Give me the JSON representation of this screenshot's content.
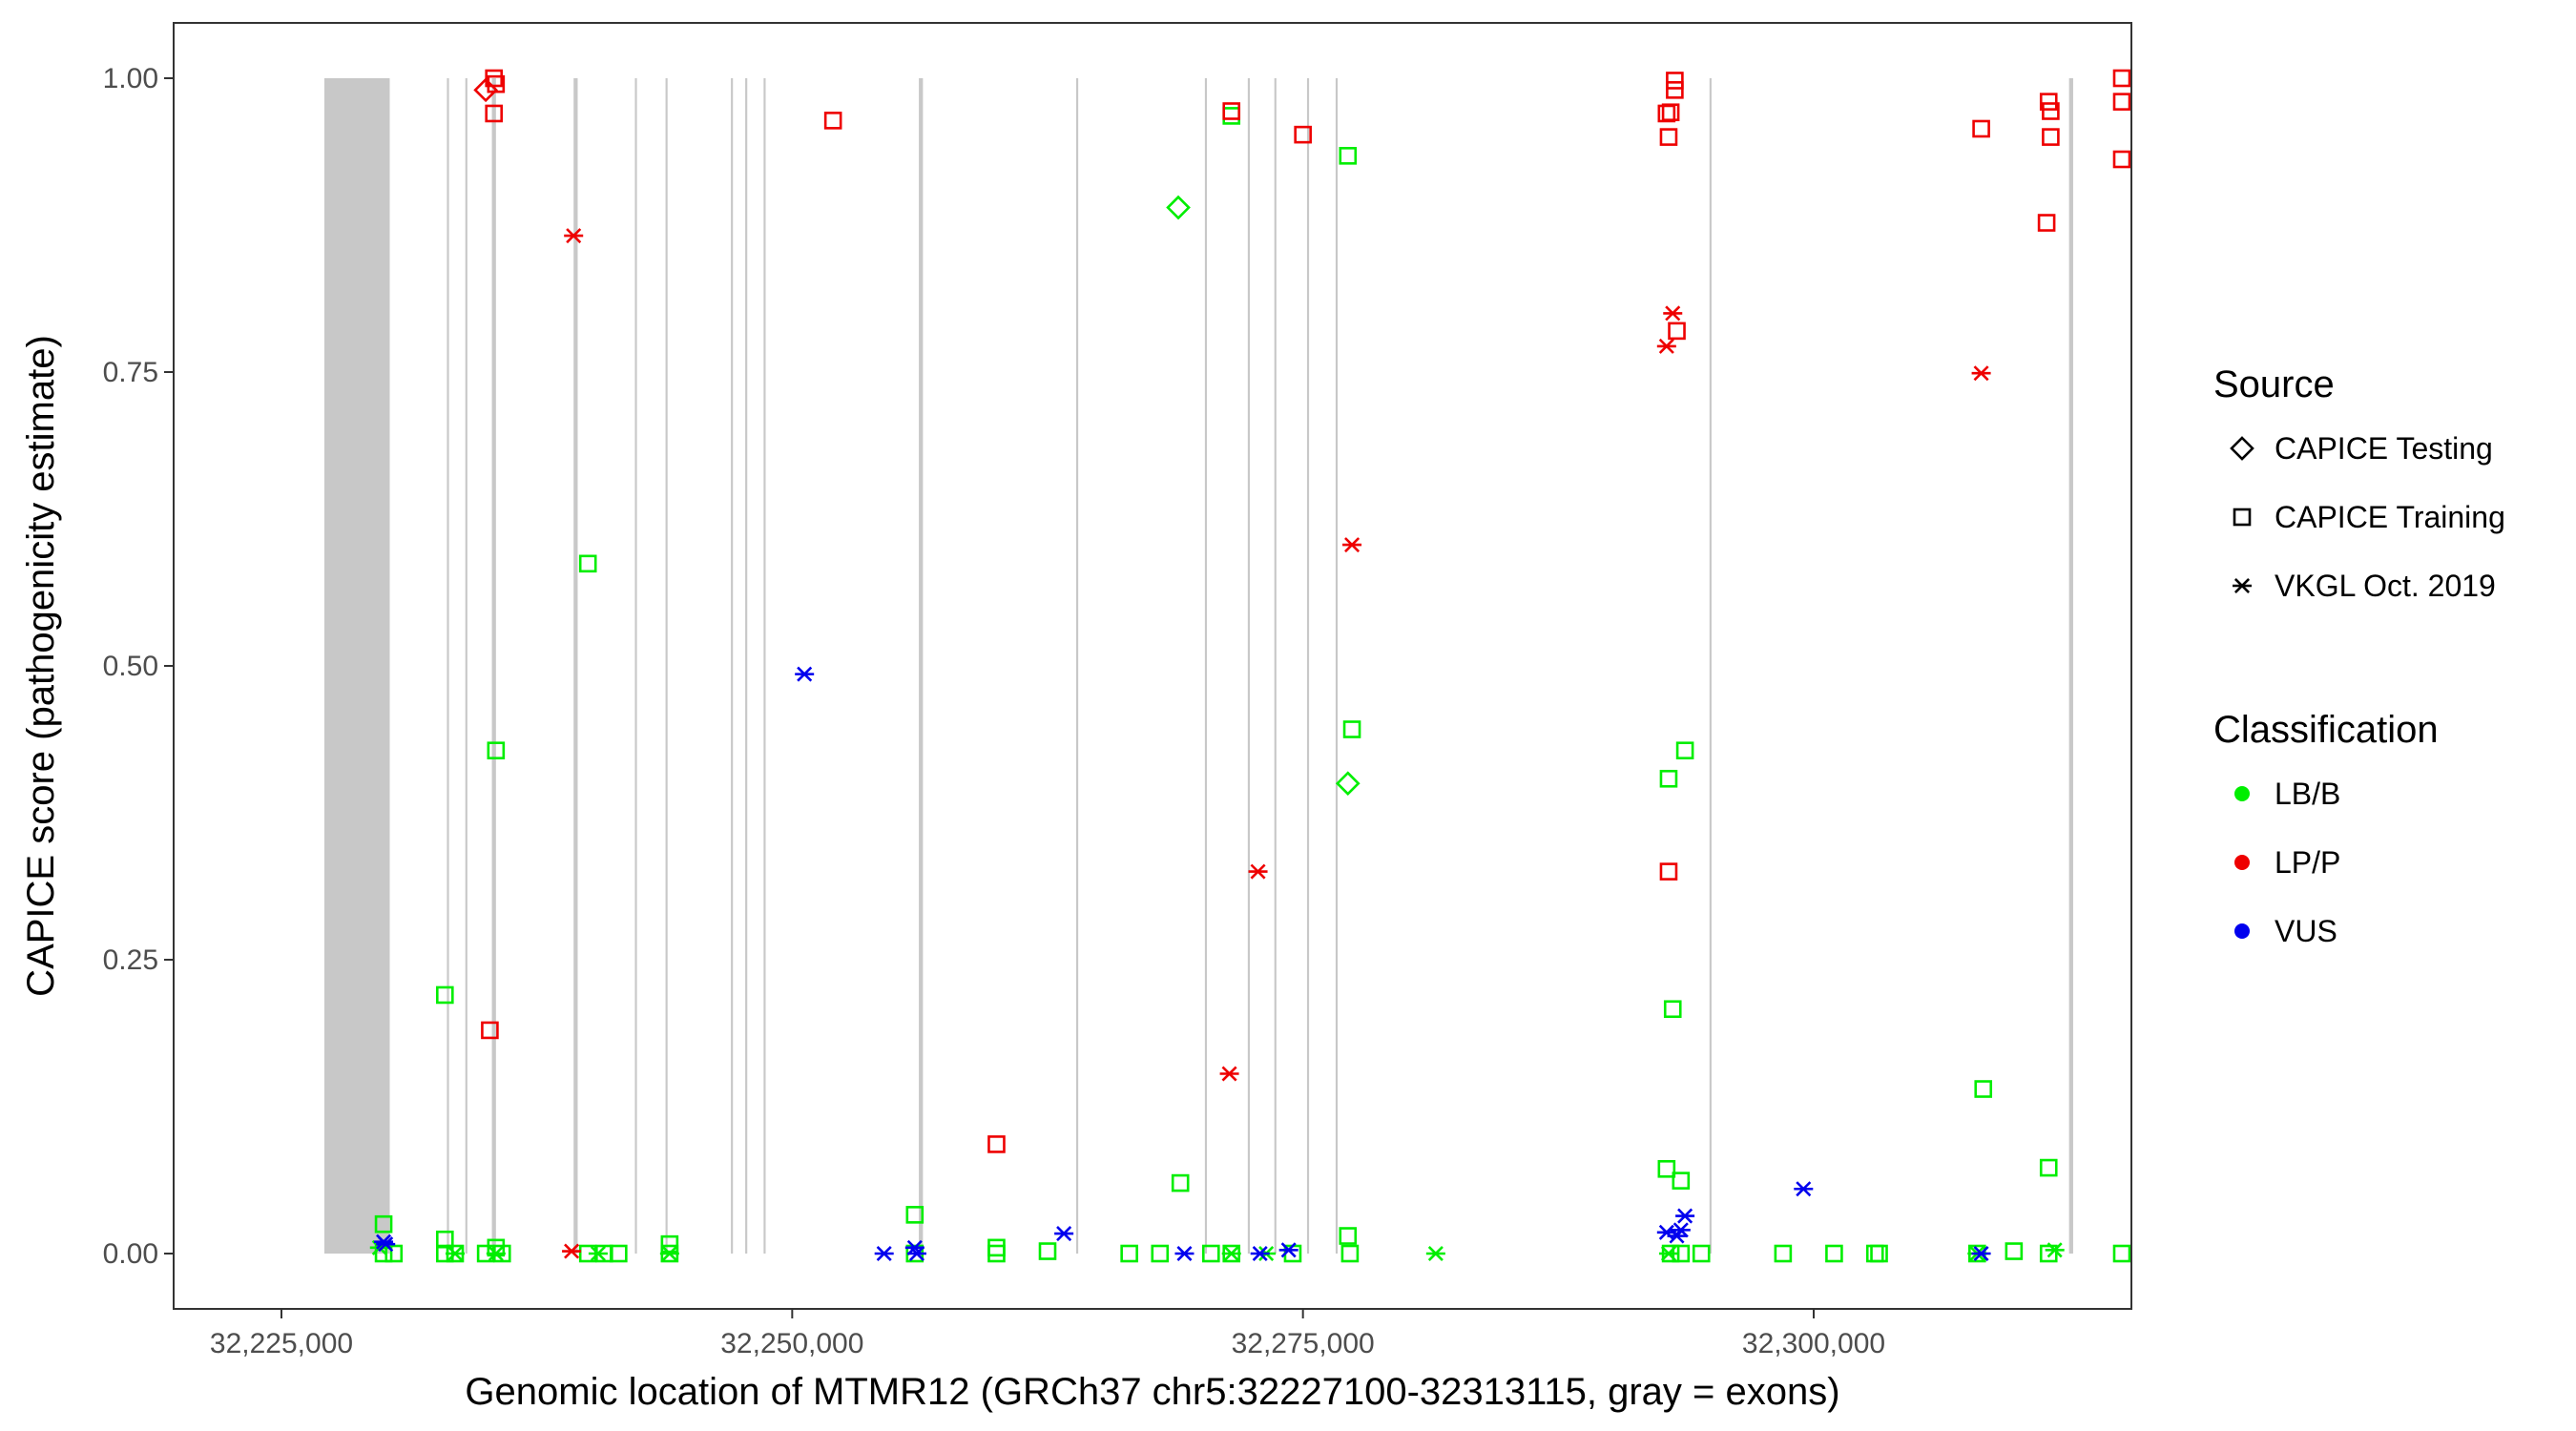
{
  "chart_data": {
    "type": "scatter",
    "title": "",
    "xlabel": "Genomic location of MTMR12 (GRCh37 chr5:32227100-32313115, gray = exons)",
    "ylabel": "CAPICE score (pathogenicity estimate)",
    "xlim": [
      32222000,
      32319500
    ],
    "ylim": [
      -0.05,
      1.05
    ],
    "x_ticks": [
      32225000,
      32250000,
      32275000,
      32300000
    ],
    "x_tick_labels": [
      "32,225,000",
      "32,250,000",
      "32,275,000",
      "32,300,000"
    ],
    "y_ticks": [
      0,
      0.25,
      0.5,
      0.75,
      1
    ],
    "y_tick_labels": [
      "0.00",
      "0.25",
      "0.50",
      "0.75",
      "1.00"
    ],
    "grid": false,
    "legend_position": "right",
    "exons": [
      [
        32227100,
        32230300
      ],
      [
        32233100,
        32233200
      ],
      [
        32234000,
        32234100
      ],
      [
        32235300,
        32235500
      ],
      [
        32239300,
        32239500
      ],
      [
        32242300,
        32242400
      ],
      [
        32243800,
        32243900
      ],
      [
        32247000,
        32247100
      ],
      [
        32247700,
        32247800
      ],
      [
        32248600,
        32248700
      ],
      [
        32256200,
        32256400
      ],
      [
        32263900,
        32264000
      ],
      [
        32270200,
        32270300
      ],
      [
        32272300,
        32272400
      ],
      [
        32273600,
        32273700
      ],
      [
        32275200,
        32275300
      ],
      [
        32276600,
        32276700
      ],
      [
        32294900,
        32295000
      ],
      [
        32312500,
        32312700
      ]
    ],
    "legend_source": {
      "title": "Source",
      "items": [
        {
          "key": "testing",
          "label": "CAPICE Testing",
          "shape": "diamond"
        },
        {
          "key": "training",
          "label": "CAPICE Training",
          "shape": "square"
        },
        {
          "key": "vkgl",
          "label": "VKGL Oct. 2019",
          "shape": "asterisk"
        }
      ]
    },
    "legend_classification": {
      "title": "Classification",
      "items": [
        {
          "key": "lbb",
          "label": "LB/B",
          "color": "#00ee00"
        },
        {
          "key": "lpp",
          "label": "LP/P",
          "color": "#ee0000"
        },
        {
          "key": "vus",
          "label": "VUS",
          "color": "#0000ee"
        }
      ]
    },
    "series": [
      {
        "source": "training",
        "classification": "lbb",
        "points": [
          [
            32230000,
            0.025
          ],
          [
            32230000,
            0.0
          ],
          [
            32230500,
            0.0
          ],
          [
            32233000,
            0.22
          ],
          [
            32233000,
            0.012
          ],
          [
            32233000,
            0.0
          ],
          [
            32233500,
            0.0
          ],
          [
            32235500,
            0.428
          ],
          [
            32235500,
            0.005
          ],
          [
            32235000,
            0.0
          ],
          [
            32235800,
            0.0
          ],
          [
            32240000,
            0.587
          ],
          [
            32240000,
            0.0
          ],
          [
            32240800,
            0.0
          ],
          [
            32241500,
            0.0
          ],
          [
            32244000,
            0.008
          ],
          [
            32244000,
            0.0
          ],
          [
            32256000,
            0.033
          ],
          [
            32256000,
            0.0
          ],
          [
            32260000,
            0.005
          ],
          [
            32260000,
            0.0
          ],
          [
            32262500,
            0.002
          ],
          [
            32266500,
            0.0
          ],
          [
            32268000,
            0.0
          ],
          [
            32269000,
            0.06
          ],
          [
            32270500,
            0.0
          ],
          [
            32271500,
            0.968
          ],
          [
            32271500,
            0.0
          ],
          [
            32274500,
            0.0
          ],
          [
            32277200,
            0.934
          ],
          [
            32277400,
            0.446
          ],
          [
            32277200,
            0.015
          ],
          [
            32277300,
            0.0
          ],
          [
            32292800,
            0.072
          ],
          [
            32292900,
            0.404
          ],
          [
            32293100,
            0.208
          ],
          [
            32293500,
            0.062
          ],
          [
            32293700,
            0.428
          ],
          [
            32293000,
            0.0
          ],
          [
            32293500,
            0.0
          ],
          [
            32294500,
            0.0
          ],
          [
            32298500,
            0.0
          ],
          [
            32301000,
            0.0
          ],
          [
            32303000,
            0.0
          ],
          [
            32303200,
            0.0
          ],
          [
            32308000,
            0.0
          ],
          [
            32308300,
            0.14
          ],
          [
            32309800,
            0.002
          ],
          [
            32311500,
            0.073
          ],
          [
            32311500,
            0.0
          ],
          [
            32319000,
            0.0
          ]
        ]
      },
      {
        "source": "training",
        "classification": "lpp",
        "points": [
          [
            32235400,
            1.0
          ],
          [
            32235500,
            0.995
          ],
          [
            32235400,
            0.97
          ],
          [
            32235200,
            0.19
          ],
          [
            32252000,
            0.964
          ],
          [
            32260000,
            0.093
          ],
          [
            32271500,
            0.972
          ],
          [
            32275000,
            0.952
          ],
          [
            32292800,
            0.97
          ],
          [
            32293000,
            0.971
          ],
          [
            32292900,
            0.95
          ],
          [
            32293200,
            0.998
          ],
          [
            32293200,
            0.99
          ],
          [
            32293300,
            0.785
          ],
          [
            32292900,
            0.325
          ],
          [
            32308200,
            0.957
          ],
          [
            32311500,
            0.98
          ],
          [
            32311600,
            0.972
          ],
          [
            32311600,
            0.95
          ],
          [
            32311400,
            0.877
          ],
          [
            32319100,
            1.0
          ],
          [
            32319200,
            0.98
          ],
          [
            32319000,
            0.931
          ]
        ]
      },
      {
        "source": "testing",
        "classification": "lbb",
        "points": [
          [
            32268900,
            0.89
          ],
          [
            32277200,
            0.4
          ]
        ]
      },
      {
        "source": "testing",
        "classification": "lpp",
        "points": [
          [
            32235000,
            0.99
          ]
        ]
      },
      {
        "source": "vkgl",
        "classification": "lbb",
        "points": [
          [
            32229800,
            0.005
          ],
          [
            32233500,
            0.0
          ],
          [
            32235500,
            0.0
          ],
          [
            32240500,
            0.0
          ],
          [
            32244000,
            0.0
          ],
          [
            32271500,
            0.0
          ],
          [
            32273200,
            0.0
          ],
          [
            32281500,
            0.0
          ],
          [
            32292900,
            0.0
          ],
          [
            32308000,
            0.0
          ],
          [
            32311800,
            0.003
          ]
        ]
      },
      {
        "source": "vkgl",
        "classification": "lpp",
        "points": [
          [
            32239300,
            0.866
          ],
          [
            32239200,
            0.002
          ],
          [
            32271400,
            0.153
          ],
          [
            32272800,
            0.325
          ],
          [
            32277400,
            0.603
          ],
          [
            32292800,
            0.772
          ],
          [
            32293100,
            0.8
          ],
          [
            32308200,
            0.749
          ]
        ]
      },
      {
        "source": "vkgl",
        "classification": "vus",
        "points": [
          [
            32230000,
            0.01
          ],
          [
            32230100,
            0.008
          ],
          [
            32250600,
            0.493
          ],
          [
            32254500,
            0.0
          ],
          [
            32256000,
            0.005
          ],
          [
            32256100,
            0.0
          ],
          [
            32263300,
            0.017
          ],
          [
            32269200,
            0.0
          ],
          [
            32272900,
            0.0
          ],
          [
            32274300,
            0.003
          ],
          [
            32292800,
            0.018
          ],
          [
            32293300,
            0.015
          ],
          [
            32293700,
            0.032
          ],
          [
            32293500,
            0.02
          ],
          [
            32299500,
            0.055
          ],
          [
            32308200,
            0.0
          ]
        ]
      }
    ]
  }
}
